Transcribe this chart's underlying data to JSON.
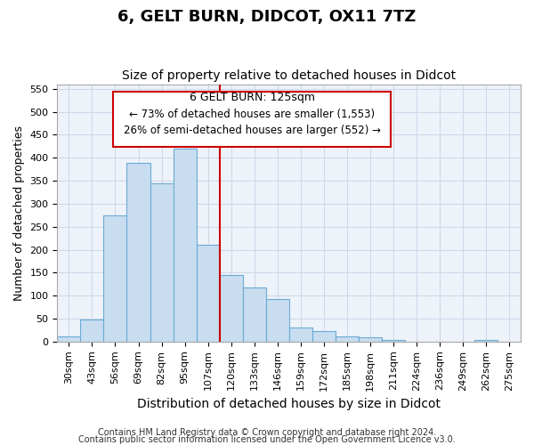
{
  "title": "6, GELT BURN, DIDCOT, OX11 7TZ",
  "subtitle": "Size of property relative to detached houses in Didcot",
  "xlabel": "Distribution of detached houses by size in Didcot",
  "ylabel": "Number of detached properties",
  "bar_labels": [
    "30sqm",
    "43sqm",
    "56sqm",
    "69sqm",
    "82sqm",
    "95sqm",
    "107sqm",
    "120sqm",
    "133sqm",
    "146sqm",
    "159sqm",
    "172sqm",
    "185sqm",
    "198sqm",
    "211sqm",
    "224sqm",
    "236sqm",
    "249sqm",
    "262sqm",
    "275sqm"
  ],
  "bar_values": [
    12,
    48,
    275,
    388,
    345,
    420,
    210,
    145,
    118,
    92,
    31,
    22,
    12,
    10,
    3,
    0,
    0,
    0,
    3
  ],
  "bar_color": "#c9ddf0",
  "bar_edge_color": "#6aaad4",
  "grid_color": "#d0d8e8",
  "reference_line_x": 6.5,
  "reference_line_color": "#cc0000",
  "annotation_title": "6 GELT BURN: 125sqm",
  "annotation_line1": "← 73% of detached houses are smaller (1,553)",
  "annotation_line2": "26% of semi-detached houses are larger (552) →",
  "annotation_box_facecolor": "#ffffff",
  "annotation_box_edgecolor": "#cc0000",
  "ylim": [
    0,
    560
  ],
  "yticks": [
    0,
    50,
    100,
    150,
    200,
    250,
    300,
    350,
    400,
    450,
    500,
    550
  ],
  "footer1": "Contains HM Land Registry data © Crown copyright and database right 2024.",
  "footer2": "Contains public sector information licensed under the Open Government Licence v3.0.",
  "title_fontsize": 13,
  "subtitle_fontsize": 10,
  "xlabel_fontsize": 10,
  "ylabel_fontsize": 9,
  "tick_fontsize": 8,
  "ann_title_fontsize": 9,
  "ann_text_fontsize": 8.5,
  "footer_fontsize": 7
}
